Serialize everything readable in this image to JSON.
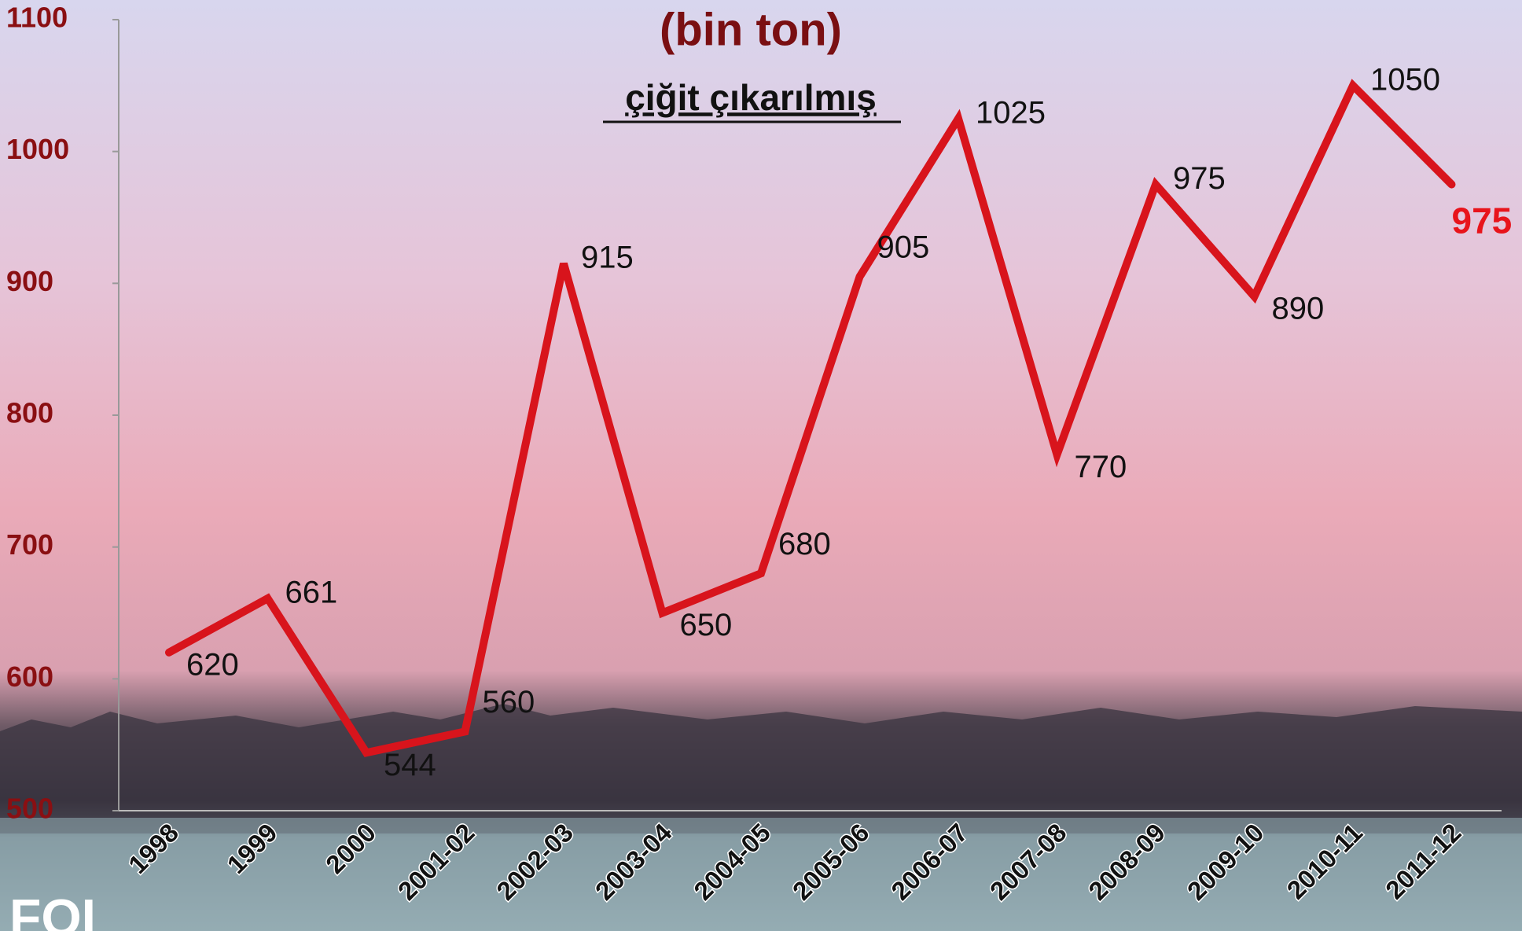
{
  "chart_data": {
    "type": "line",
    "title": "(bin ton)",
    "subtitle": "çiğit çıkarılmış",
    "logo": "FOI",
    "categories": [
      "1998",
      "1999",
      "2000",
      "2001-02",
      "2002-03",
      "2003-04",
      "2004-05",
      "2005-06",
      "2006-07",
      "2007-08",
      "2008-09",
      "2009-10",
      "2010-11",
      "2011-12"
    ],
    "series": [
      {
        "name": "çiğit çıkarılmış",
        "color": "#d8141c",
        "values": [
          620,
          661,
          544,
          560,
          915,
          650,
          680,
          905,
          1025,
          770,
          975,
          890,
          1050,
          975
        ]
      }
    ],
    "ylim": [
      500,
      1100
    ],
    "yticks": [
      500,
      600,
      700,
      800,
      900,
      1000,
      1100
    ]
  }
}
